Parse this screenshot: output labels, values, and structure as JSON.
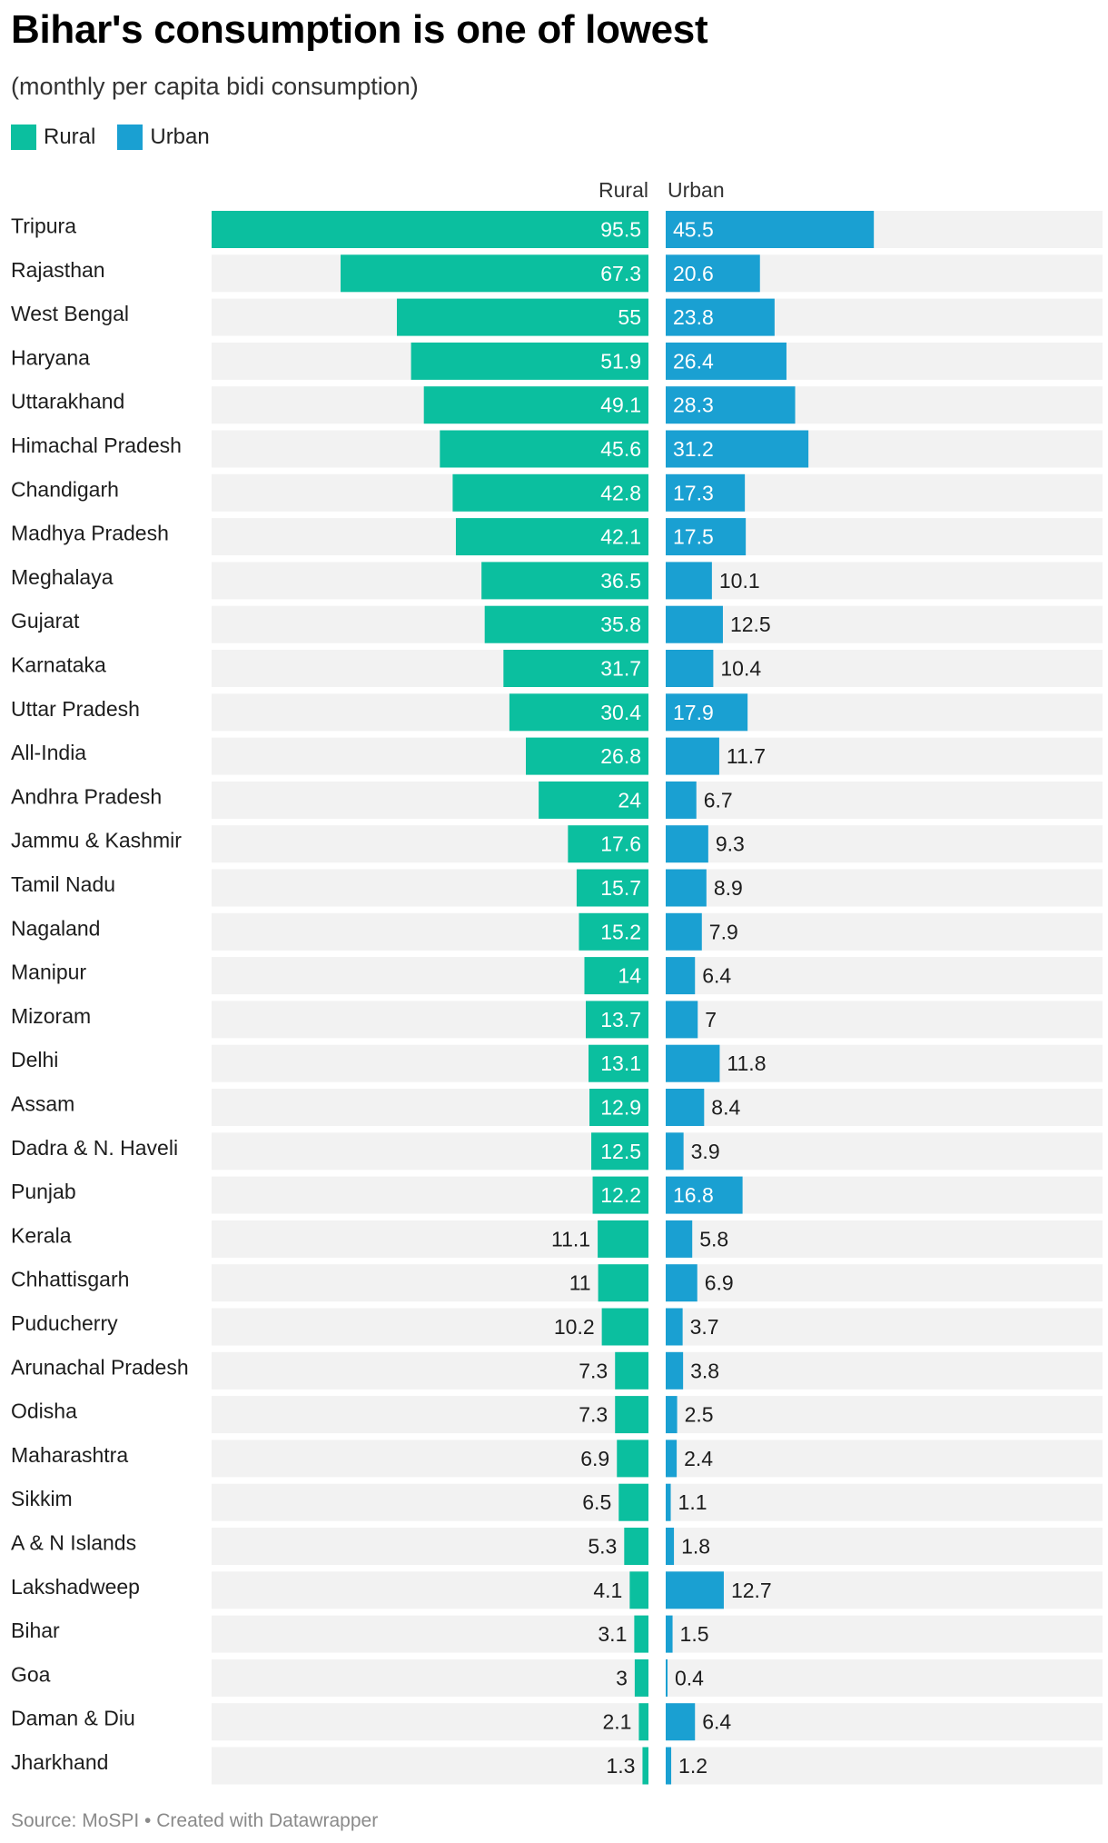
{
  "title": "Bihar's consumption is one of lowest",
  "subtitle": "(monthly per capita bidi consumption)",
  "legend": [
    {
      "label": "Rural",
      "color": "#0bbf9f"
    },
    {
      "label": "Urban",
      "color": "#1aa0d2"
    }
  ],
  "footer": "Source: MoSPI • Created with Datawrapper",
  "colors": {
    "rural": "#0bbf9f",
    "urban": "#1aa0d2",
    "track": "#f2f2f2"
  },
  "chart_data": {
    "type": "bar",
    "column_headers": [
      "Rural",
      "Urban"
    ],
    "categories": [
      "Tripura",
      "Rajasthan",
      "West Bengal",
      "Haryana",
      "Uttarakhand",
      "Himachal Pradesh",
      "Chandigarh",
      "Madhya Pradesh",
      "Meghalaya",
      "Gujarat",
      "Karnataka",
      "Uttar Pradesh",
      "All-India",
      "Andhra Pradesh",
      "Jammu & Kashmir",
      "Tamil Nadu",
      "Nagaland",
      "Manipur",
      "Mizoram",
      "Delhi",
      "Assam",
      "Dadra & N. Haveli",
      "Punjab",
      "Kerala",
      "Chhattisgarh",
      "Puducherry",
      "Arunachal Pradesh",
      "Odisha",
      "Maharashtra",
      "Sikkim",
      "A & N Islands",
      "Lakshadweep",
      "Bihar",
      "Goa",
      "Daman & Diu",
      "Jharkhand"
    ],
    "series": [
      {
        "name": "Rural",
        "values": [
          95.5,
          67.3,
          55,
          51.9,
          49.1,
          45.6,
          42.8,
          42.1,
          36.5,
          35.8,
          31.7,
          30.4,
          26.8,
          24,
          17.6,
          15.7,
          15.2,
          14,
          13.7,
          13.1,
          12.9,
          12.5,
          12.2,
          11.1,
          11,
          10.2,
          7.3,
          7.3,
          6.9,
          6.5,
          5.3,
          4.1,
          3.1,
          3,
          2.1,
          1.3
        ]
      },
      {
        "name": "Urban",
        "values": [
          45.5,
          20.6,
          23.8,
          26.4,
          28.3,
          31.2,
          17.3,
          17.5,
          10.1,
          12.5,
          10.4,
          17.9,
          11.7,
          6.7,
          9.3,
          8.9,
          7.9,
          6.4,
          7,
          11.8,
          8.4,
          3.9,
          16.8,
          5.8,
          6.9,
          3.7,
          3.8,
          2.5,
          2.4,
          1.1,
          1.8,
          12.7,
          1.5,
          0.4,
          6.4,
          1.2
        ]
      }
    ],
    "rural_max": 95.5,
    "urban_max": 95.5
  }
}
